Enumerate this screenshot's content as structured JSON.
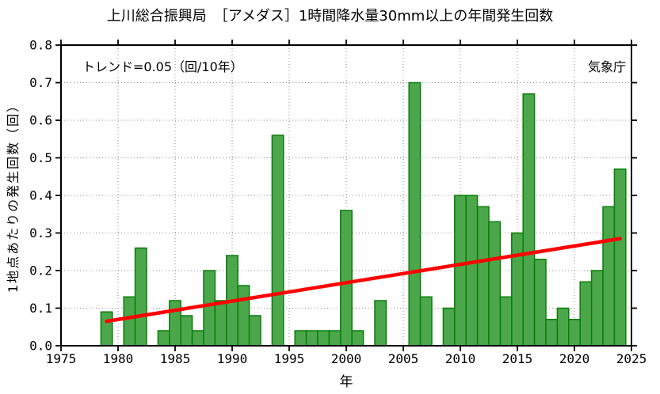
{
  "page": {
    "background": "#ffffff"
  },
  "chart_data": {
    "type": "bar",
    "title": "上川総合振興局　［アメダス］1時間降水量30mm以上の年間発生回数",
    "xlabel": "年",
    "ylabel": "1地点あたりの発生回数（回）",
    "annotations": {
      "trend": "トレンド=0.05（回/10年）",
      "agency": "気象庁"
    },
    "xlim": [
      1975,
      2025
    ],
    "ylim": [
      0.0,
      0.8
    ],
    "x_ticks": [
      1975,
      1980,
      1985,
      1990,
      1995,
      2000,
      2005,
      2010,
      2015,
      2020,
      2025
    ],
    "y_ticks": [
      0.0,
      0.1,
      0.2,
      0.3,
      0.4,
      0.5,
      0.6,
      0.7,
      0.8
    ],
    "grid": {
      "x_gridlines_at": [
        1980,
        1985,
        1990,
        1995,
        2000,
        2005,
        2010,
        2015,
        2020
      ],
      "y_gridlines_at": [
        0.1,
        0.2,
        0.3,
        0.4,
        0.5,
        0.6,
        0.7
      ],
      "style": "dotted"
    },
    "categories": [
      1979,
      1980,
      1981,
      1982,
      1983,
      1984,
      1985,
      1986,
      1987,
      1988,
      1989,
      1990,
      1991,
      1992,
      1993,
      1994,
      1995,
      1996,
      1997,
      1998,
      1999,
      2000,
      2001,
      2002,
      2003,
      2004,
      2005,
      2006,
      2007,
      2008,
      2009,
      2010,
      2011,
      2012,
      2013,
      2014,
      2015,
      2016,
      2017,
      2018,
      2019,
      2020,
      2021,
      2022,
      2023,
      2024
    ],
    "values": [
      0.09,
      0,
      0.13,
      0.26,
      0,
      0.04,
      0.12,
      0.08,
      0.04,
      0.2,
      0.12,
      0.24,
      0.16,
      0.08,
      0,
      0.56,
      0,
      0.04,
      0.04,
      0.04,
      0.04,
      0.36,
      0.04,
      0,
      0.12,
      0,
      0,
      0.7,
      0.13,
      0,
      0.1,
      0.4,
      0.4,
      0.37,
      0.33,
      0.13,
      0.3,
      0.67,
      0.23,
      0.07,
      0.1,
      0.07,
      0.17,
      0.2,
      0.37,
      0.47
    ],
    "trend_line": {
      "slope_per_decade": 0.05,
      "x_start": 1979,
      "y_start": 0.065,
      "x_end": 2024,
      "y_end": 0.285
    },
    "colors": {
      "bar_fill": "#4CA74C",
      "bar_border": "#097E09",
      "trend": "#FF0000",
      "grid": "#8A8A8A",
      "axis": "#000000",
      "text": "#000000"
    }
  }
}
